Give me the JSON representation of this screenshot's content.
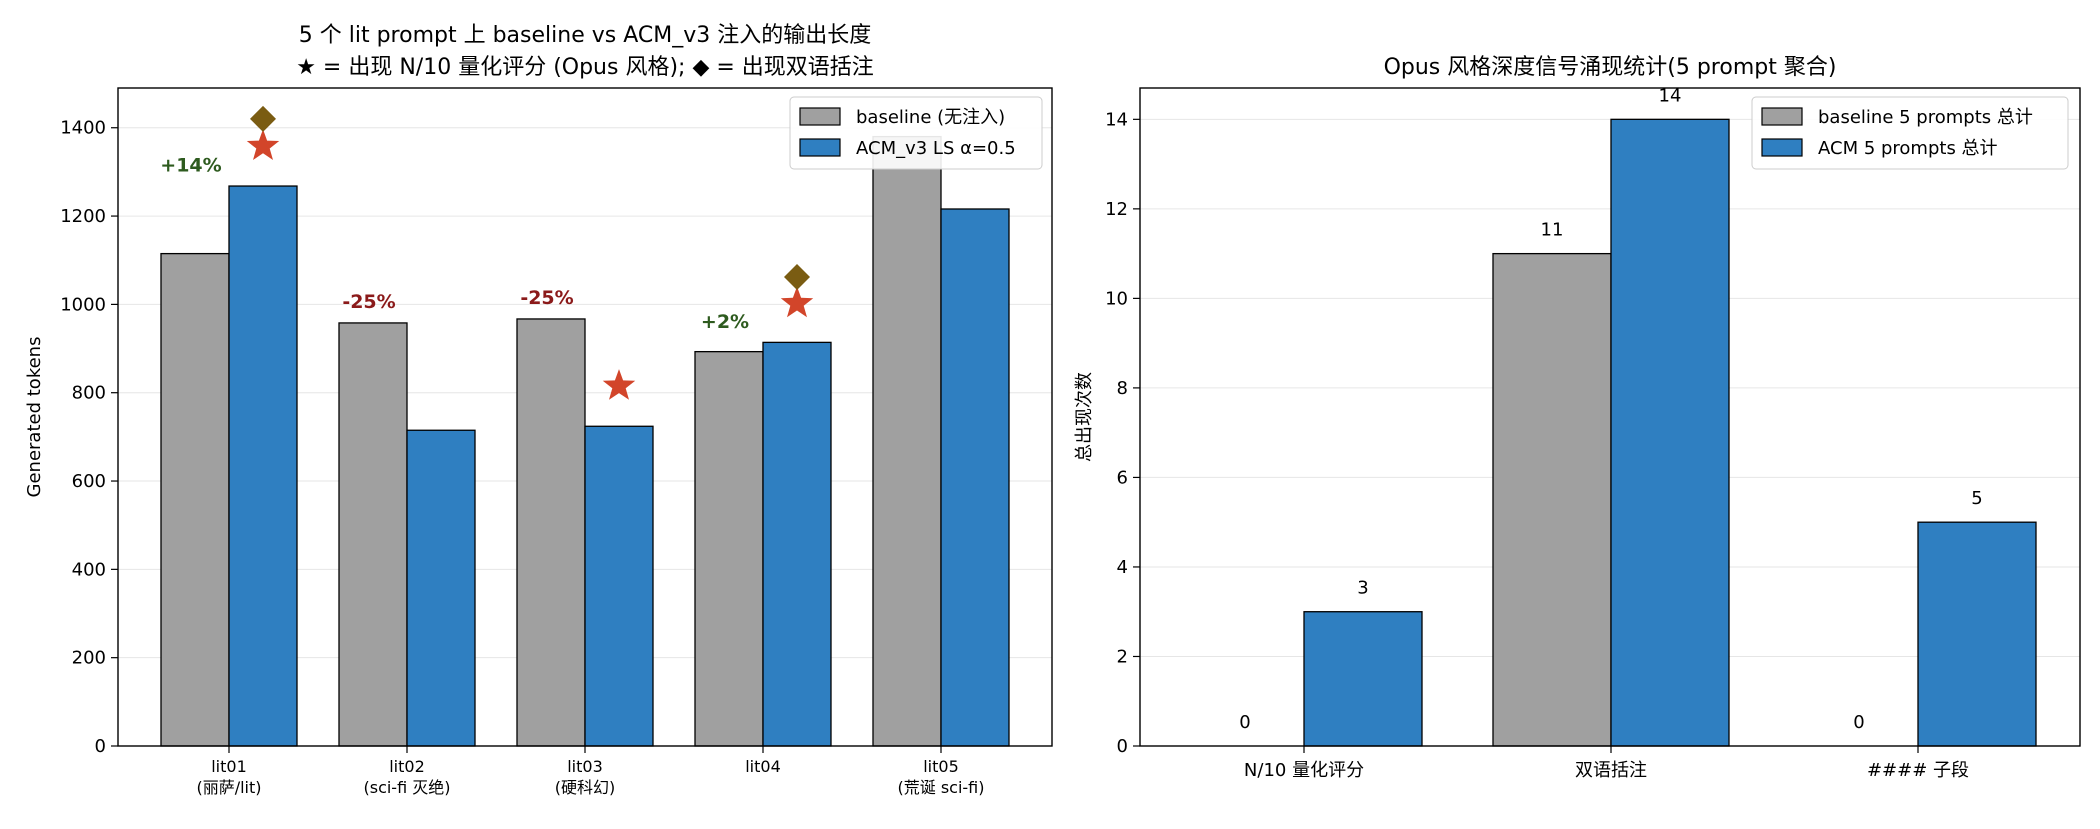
{
  "chart_data": [
    {
      "type": "bar",
      "title_lines": [
        "5 个 lit prompt 上 baseline vs ACM_v3 注入的输出长度",
        "★ = 出现 N/10 量化评分 (Opus 风格); ◆ = 出现双语括注"
      ],
      "ylabel": "Generated tokens",
      "ylim": [
        0,
        1490
      ],
      "yticks": [
        0,
        200,
        400,
        600,
        800,
        1000,
        1200,
        1400
      ],
      "grid": true,
      "legend_position": "top-right",
      "categories": [
        [
          "lit01",
          "(丽萨/lit)"
        ],
        [
          "lit02",
          "(sci-fi 灭绝)"
        ],
        [
          "lit03",
          "(硬科幻)"
        ],
        [
          "lit04"
        ],
        [
          "lit05",
          "(荒诞 sci-fi)"
        ]
      ],
      "series": [
        {
          "name": "baseline (无注入)",
          "color": "#a0a0a0",
          "values": [
            1115,
            958,
            967,
            893,
            1380
          ]
        },
        {
          "name": "ACM_v3 LS α=0.5",
          "color": "#2f7fc1",
          "values": [
            1268,
            715,
            724,
            914,
            1216
          ]
        }
      ],
      "pct_labels": [
        {
          "category": 0,
          "text": "+14%",
          "y": 1315,
          "color": "#2e5b1f"
        },
        {
          "category": 1,
          "text": "-25%",
          "y": 1005,
          "color": "#8b1a1a"
        },
        {
          "category": 2,
          "text": "-25%",
          "y": 1015,
          "color": "#8b1a1a"
        },
        {
          "category": 3,
          "text": "+2%",
          "y": 960,
          "color": "#2e5b1f"
        }
      ],
      "stars": [
        {
          "category": 0,
          "y": 1358,
          "color": "#d2452a"
        },
        {
          "category": 2,
          "y": 815,
          "color": "#d2452a"
        },
        {
          "category": 3,
          "y": 1002,
          "color": "#d2452a"
        }
      ],
      "diamonds": [
        {
          "category": 0,
          "y": 1420,
          "color": "#7a5c12"
        },
        {
          "category": 3,
          "y": 1062,
          "color": "#7a5c12"
        }
      ]
    },
    {
      "type": "bar",
      "title": "Opus 风格深度信号涌现统计(5 prompt 聚合)",
      "ylabel": "总出现次数",
      "ylim": [
        0,
        14.7
      ],
      "yticks": [
        0,
        2,
        4,
        6,
        8,
        10,
        12,
        14
      ],
      "grid": true,
      "legend_position": "top-right",
      "categories": [
        "N/10 量化评分",
        "双语括注",
        "#### 子段"
      ],
      "series": [
        {
          "name": "baseline 5 prompts 总计",
          "color": "#a0a0a0",
          "values": [
            0,
            11,
            0
          ]
        },
        {
          "name": "ACM 5 prompts 总计",
          "color": "#2f7fc1",
          "values": [
            3,
            14,
            5
          ]
        }
      ]
    }
  ]
}
